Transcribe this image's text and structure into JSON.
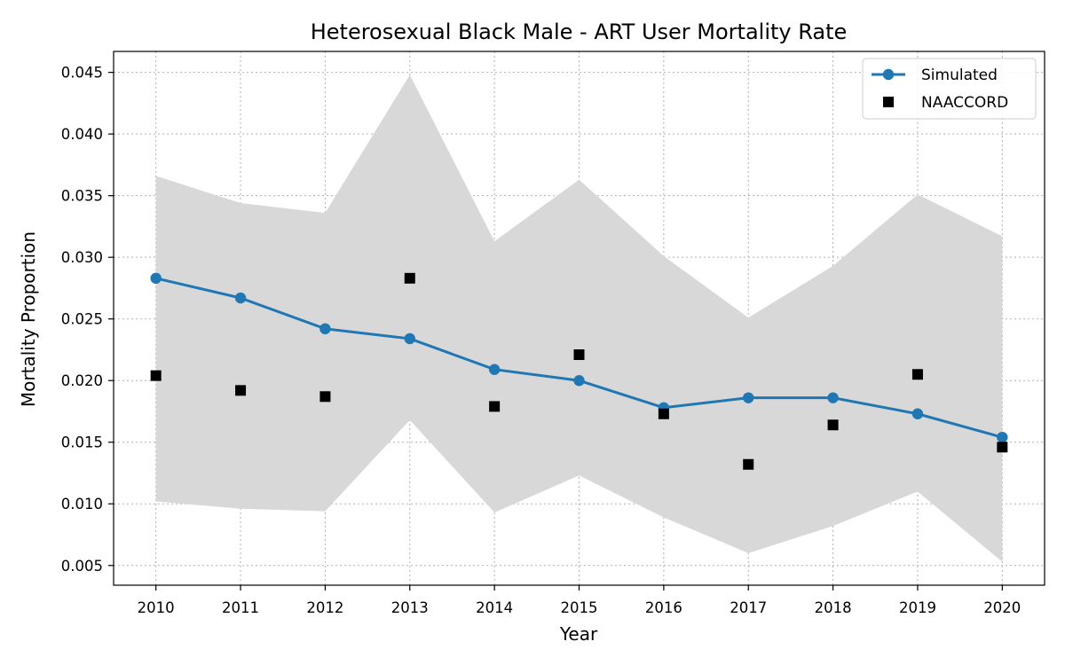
{
  "chart_data": {
    "type": "line",
    "title": "Heterosexual Black Male - ART User Mortality Rate",
    "xlabel": "Year",
    "ylabel": "Mortality Proportion",
    "x": [
      2010,
      2011,
      2012,
      2013,
      2014,
      2015,
      2016,
      2017,
      2018,
      2019,
      2020
    ],
    "xlim": [
      2009.5,
      2020.5
    ],
    "ylim": [
      0.0034,
      0.0467
    ],
    "yticks": [
      0.005,
      0.01,
      0.015,
      0.02,
      0.025,
      0.03,
      0.035,
      0.04,
      0.045
    ],
    "ytick_labels": [
      "0.005",
      "0.010",
      "0.015",
      "0.020",
      "0.025",
      "0.030",
      "0.035",
      "0.040",
      "0.045"
    ],
    "xtick_labels": [
      "2010",
      "2011",
      "2012",
      "2013",
      "2014",
      "2015",
      "2016",
      "2017",
      "2018",
      "2019",
      "2020"
    ],
    "grid": true,
    "legend_position": "top-right",
    "series": [
      {
        "name": "Simulated",
        "kind": "line-marker",
        "color": "#1f77b4",
        "values": [
          0.0283,
          0.0267,
          0.0242,
          0.0234,
          0.0209,
          0.02,
          0.0178,
          0.0186,
          0.0186,
          0.0173,
          0.0154
        ]
      },
      {
        "name": "NAACCORD",
        "kind": "square-marker",
        "color": "#000000",
        "values": [
          0.0204,
          0.0192,
          0.0187,
          0.0283,
          0.0179,
          0.0221,
          0.0173,
          0.0132,
          0.0164,
          0.0205,
          0.0146
        ]
      }
    ],
    "band": {
      "color": "#d8d8d8",
      "upper": [
        0.0366,
        0.0344,
        0.0336,
        0.0448,
        0.0313,
        0.0363,
        0.0301,
        0.0251,
        0.0293,
        0.0351,
        0.0317
      ],
      "lower": [
        0.0102,
        0.0096,
        0.0094,
        0.0168,
        0.0093,
        0.0123,
        0.0089,
        0.006,
        0.0082,
        0.011,
        0.0053
      ]
    }
  }
}
